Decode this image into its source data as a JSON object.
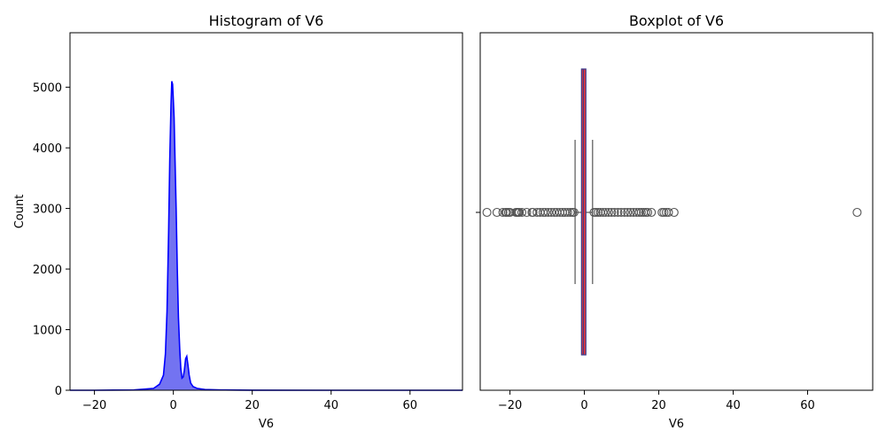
{
  "chart_data": [
    {
      "type": "histogram",
      "title": "Histogram of V6",
      "xlabel": "V6",
      "ylabel": "Count",
      "xlim": [
        -26.2,
        73.3
      ],
      "ylim": [
        0,
        5900
      ],
      "xticks": [
        -20,
        0,
        20,
        40,
        60
      ],
      "yticks": [
        0,
        1000,
        2000,
        3000,
        4000,
        5000
      ],
      "xtick_labels": [
        "−20",
        "0",
        "20",
        "40",
        "60"
      ],
      "ytick_labels": [
        "0",
        "1000",
        "2000",
        "3000",
        "4000",
        "5000"
      ],
      "grid": false,
      "colors": {
        "fill": "#6b6bf0",
        "kde": "#0000ff",
        "edge": "#0000ff"
      },
      "kde_curve": {
        "x": [
          -26.2,
          -20,
          -10,
          -5,
          -3.5,
          -2.5,
          -2,
          -1.6,
          -1.2,
          -0.9,
          -0.6,
          -0.4,
          -0.2,
          0.0,
          0.2,
          0.4,
          0.7,
          1.0,
          1.3,
          1.6,
          1.9,
          2.2,
          2.5,
          2.8,
          3.1,
          3.4,
          3.7,
          4.0,
          4.4,
          5.0,
          6.0,
          8.0,
          12,
          20,
          40,
          60,
          73.3
        ],
        "y": [
          0,
          0,
          5,
          30,
          100,
          250,
          600,
          1300,
          2600,
          3800,
          4700,
          5100,
          5050,
          4800,
          4500,
          3900,
          3000,
          2000,
          1200,
          700,
          350,
          200,
          220,
          330,
          520,
          560,
          420,
          250,
          120,
          60,
          30,
          12,
          5,
          2,
          0,
          0,
          0
        ]
      }
    },
    {
      "type": "boxplot",
      "title": "Boxplot of V6",
      "xlabel": "V6",
      "xlim": [
        -28,
        77.5
      ],
      "xticks": [
        -20,
        0,
        20,
        40,
        60
      ],
      "xtick_labels": [
        "−20",
        "0",
        "20",
        "40",
        "60"
      ],
      "grid": false,
      "colors": {
        "box_fill": "#e83838",
        "box_edge": "#3a3a8c",
        "whisker": "#555555",
        "flier": "#555555"
      },
      "box": {
        "q1": -0.77,
        "median": -0.27,
        "q3": 0.4,
        "whisker_low": -2.5,
        "whisker_high": 2.2
      },
      "outliers": [
        -26.2,
        -23.5,
        -21.9,
        -21.2,
        -20.9,
        -20.4,
        -20.0,
        -18.4,
        -18.1,
        -17.8,
        -17.5,
        -16.8,
        -15.5,
        -14.1,
        -13.8,
        -12.7,
        -11.9,
        -11.1,
        -10.5,
        -9.7,
        -8.9,
        -8.1,
        -7.4,
        -6.6,
        -5.9,
        -5.2,
        -4.5,
        -3.8,
        -3.2,
        -2.8,
        2.6,
        3.1,
        3.7,
        4.3,
        5.0,
        5.7,
        6.5,
        7.3,
        8.1,
        9.0,
        9.9,
        10.8,
        11.6,
        12.4,
        13.2,
        14.0,
        14.7,
        15.3,
        15.9,
        16.5,
        17.0,
        18.0,
        20.9,
        21.4,
        22.0,
        22.6,
        24.1,
        73.3
      ]
    }
  ]
}
